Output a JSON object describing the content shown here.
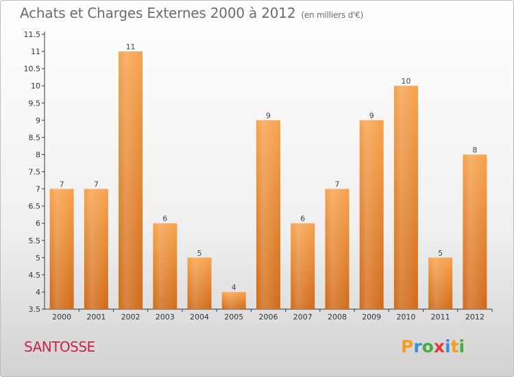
{
  "header": {
    "title": "Achats et Charges Externes 2000 à 2012",
    "subtitle": "(en milliers d'€)"
  },
  "footer": {
    "place": "SANTOSSE"
  },
  "logo": {
    "letters": [
      "P",
      "r",
      "o",
      "x",
      "i",
      "t",
      "i"
    ],
    "colors": [
      "#f0a020",
      "#3a8fd8",
      "#3fae3f",
      "#e53935",
      "#3a8fd8",
      "#f0a020",
      "#3fae3f"
    ]
  },
  "chart_data": {
    "type": "bar",
    "title": "Achats et Charges Externes 2000 à 2012",
    "subtitle": "(en milliers d'€)",
    "categories": [
      "2000",
      "2001",
      "2002",
      "2003",
      "2004",
      "2005",
      "2006",
      "2007",
      "2008",
      "2009",
      "2010",
      "2011",
      "2012"
    ],
    "values": [
      7,
      7,
      11,
      6,
      5,
      4,
      9,
      6,
      7,
      9,
      10,
      5,
      8
    ],
    "ylim": [
      3.5,
      11.5
    ],
    "yticks": [
      "3.5",
      "4",
      "4.5",
      "5",
      "5.5",
      "6",
      "6.5",
      "7",
      "7.5",
      "8",
      "8.5",
      "9",
      "9.5",
      "10",
      "10.5",
      "11",
      "11.5"
    ],
    "xlabel": "",
    "ylabel": "",
    "grid": false,
    "colors": {
      "bar": "#f09a40",
      "bar_dark": "#d26e1a"
    }
  }
}
